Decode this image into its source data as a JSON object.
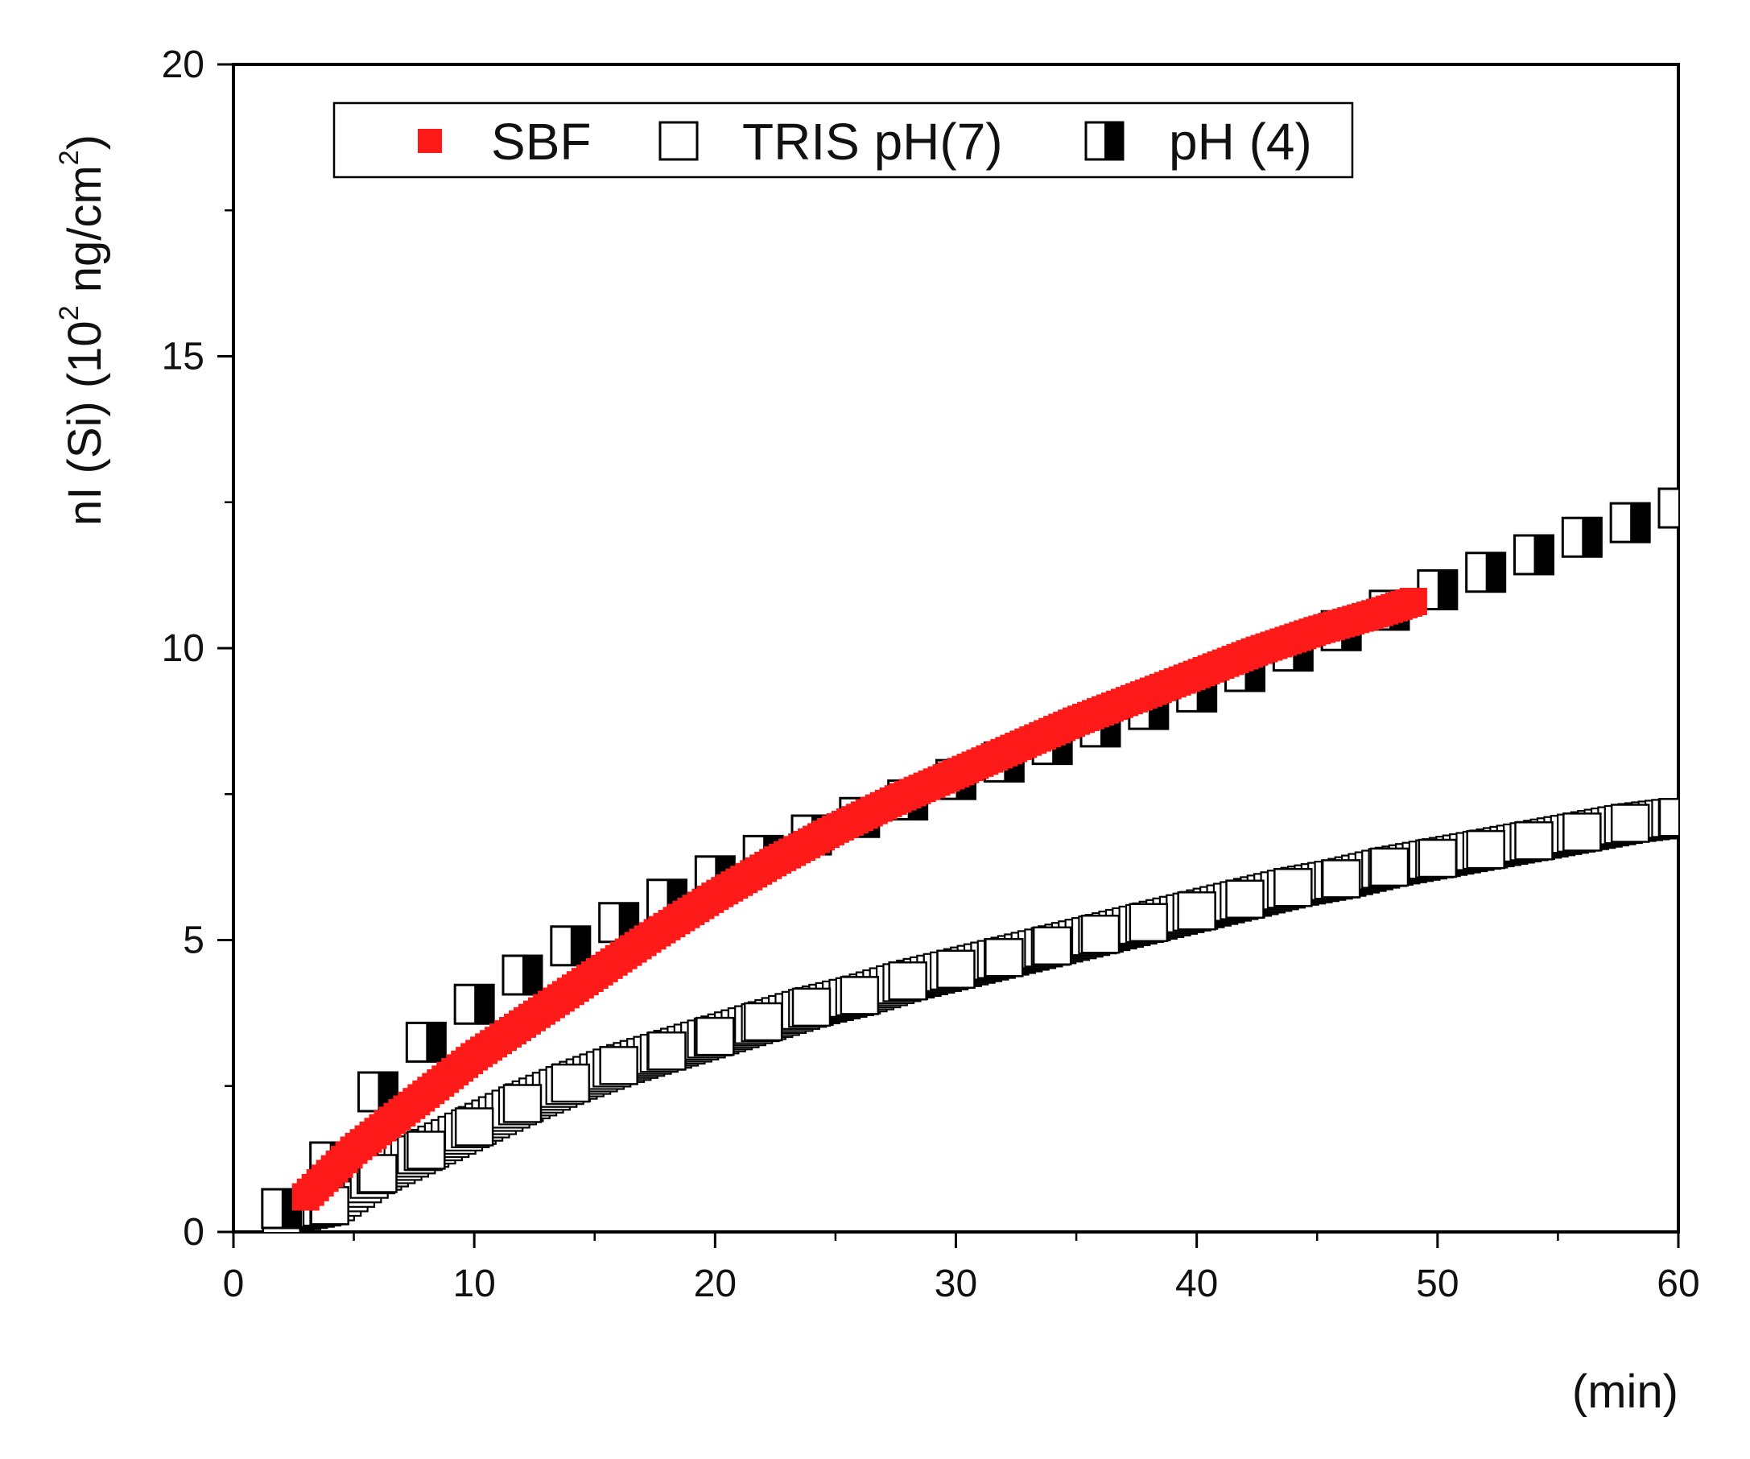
{
  "chart_data": {
    "type": "scatter",
    "title": "",
    "xlabel": "(min)",
    "ylabel": {
      "prefix": "nI (Si) (10",
      "sup1": "2",
      "mid": " ng/cm",
      "sup2": "2",
      "suffix": ")"
    },
    "xlim": [
      0,
      60
    ],
    "ylim": [
      0,
      20
    ],
    "x_ticks": [
      0,
      10,
      20,
      30,
      40,
      50,
      60
    ],
    "y_ticks": [
      0,
      5,
      10,
      15,
      20
    ],
    "x_tick_labels": [
      "0",
      "10",
      "20",
      "30",
      "40",
      "50",
      "60"
    ],
    "y_tick_labels": [
      "0",
      "5",
      "10",
      "15",
      "20"
    ],
    "grid": false,
    "legend_position": "top",
    "series": [
      {
        "name": "SBF",
        "marker": "filled-square",
        "color": "#ff1a1a",
        "x": [
          3,
          5,
          7.5,
          10,
          12.5,
          15,
          17.5,
          20,
          22.5,
          25,
          27.5,
          30,
          32.5,
          35,
          37.5,
          40,
          42.5,
          45,
          47.5,
          49
        ],
        "y": [
          0.6,
          1.4,
          2.2,
          3.0,
          3.7,
          4.4,
          5.1,
          5.75,
          6.35,
          6.9,
          7.4,
          7.85,
          8.3,
          8.75,
          9.15,
          9.55,
          9.95,
          10.3,
          10.6,
          10.8
        ]
      },
      {
        "name": "TRIS pH(7)",
        "marker": "open-square",
        "color": "#000000",
        "x": [
          2,
          4,
          6,
          8,
          10,
          12,
          14,
          16,
          18,
          20,
          22,
          24,
          26,
          28,
          30,
          32,
          34,
          36,
          38,
          40,
          42,
          44,
          46,
          48,
          50,
          52,
          54,
          56,
          58,
          60
        ],
        "y": [
          0.3,
          0.45,
          1.0,
          1.4,
          1.8,
          2.2,
          2.55,
          2.85,
          3.1,
          3.35,
          3.6,
          3.85,
          4.05,
          4.3,
          4.5,
          4.7,
          4.9,
          5.1,
          5.3,
          5.5,
          5.7,
          5.9,
          6.05,
          6.25,
          6.4,
          6.55,
          6.7,
          6.85,
          7.0,
          7.1
        ]
      },
      {
        "name": "pH (4)",
        "marker": "half-filled-square",
        "color": "#000000",
        "x": [
          2,
          4,
          6,
          8,
          10,
          12,
          14,
          16,
          18,
          20,
          22,
          24,
          26,
          28,
          30,
          32,
          34,
          36,
          38,
          40,
          42,
          44,
          46,
          48,
          50,
          52,
          54,
          56,
          58,
          60
        ],
        "y": [
          0.4,
          1.2,
          2.4,
          3.25,
          3.9,
          4.4,
          4.9,
          5.3,
          5.7,
          6.1,
          6.45,
          6.8,
          7.1,
          7.4,
          7.75,
          8.05,
          8.35,
          8.65,
          8.95,
          9.25,
          9.6,
          9.95,
          10.3,
          10.65,
          11.0,
          11.3,
          11.6,
          11.9,
          12.15,
          12.4
        ]
      }
    ]
  }
}
